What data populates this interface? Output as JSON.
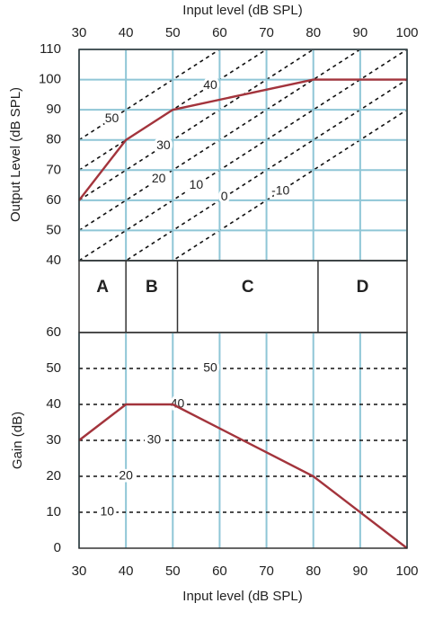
{
  "chart_data": [
    {
      "type": "line",
      "xlabel": "Input level (dB SPL)",
      "ylabel": "Output Level (dB SPL)",
      "x": [
        30,
        40,
        50,
        80,
        100
      ],
      "series": [
        {
          "color": "#a3343c",
          "values": [
            60,
            80,
            90,
            100,
            100
          ]
        }
      ],
      "xlim": [
        30,
        100
      ],
      "ylim": [
        40,
        110
      ],
      "xticks": [
        30,
        40,
        50,
        60,
        70,
        80,
        90,
        100
      ],
      "yticks": [
        40,
        50,
        60,
        70,
        80,
        90,
        100,
        110
      ],
      "grid": true,
      "grid_color": "#8fc6d6",
      "gain_lines": [
        50,
        40,
        30,
        20,
        10,
        0,
        -10
      ],
      "regions": [
        {
          "label": "A",
          "from": 30,
          "to": 40
        },
        {
          "label": "B",
          "from": 40,
          "to": 51
        },
        {
          "label": "C",
          "from": 51,
          "to": 81
        },
        {
          "label": "D",
          "from": 81,
          "to": 100
        }
      ]
    },
    {
      "type": "line",
      "xlabel": "Input level (dB SPL)",
      "ylabel": "Gain (dB)",
      "x": [
        30,
        40,
        50,
        80,
        100
      ],
      "series": [
        {
          "color": "#a3343c",
          "values": [
            30,
            40,
            40,
            20,
            0
          ]
        }
      ],
      "xlim": [
        30,
        100
      ],
      "ylim": [
        0,
        60
      ],
      "xticks": [
        30,
        40,
        50,
        60,
        70,
        80,
        90,
        100
      ],
      "yticks": [
        0,
        10,
        20,
        30,
        40,
        50,
        60
      ],
      "grid": true,
      "grid_color": "#8fc6d6",
      "gain_lines": [
        10,
        20,
        30,
        40,
        50
      ]
    }
  ]
}
